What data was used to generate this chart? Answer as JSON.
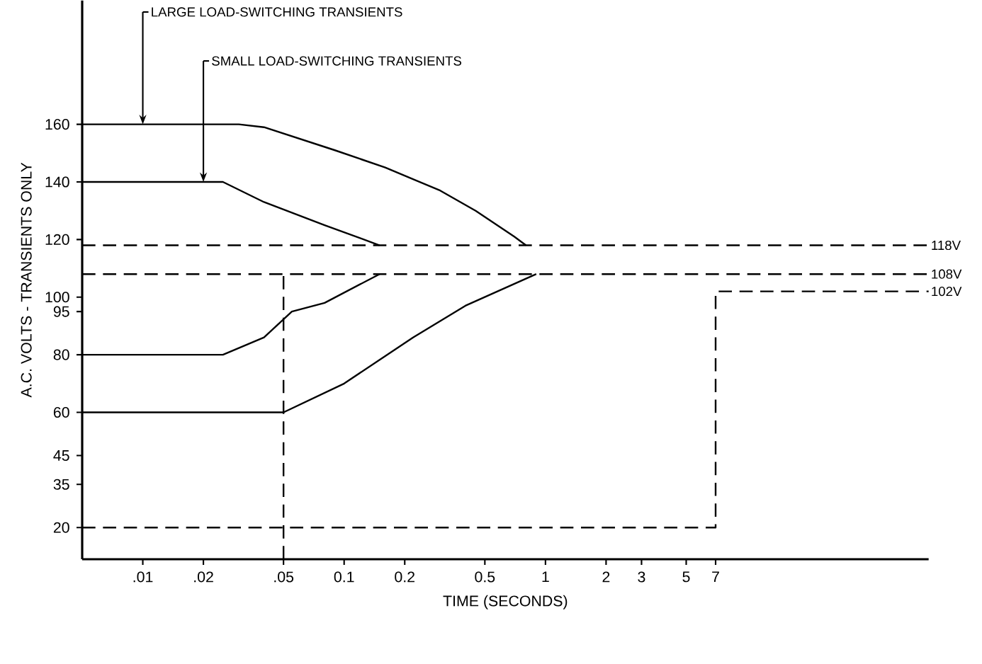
{
  "chart_data": {
    "type": "line",
    "xlabel": "TIME (SECONDS)",
    "ylabel": "A.C. VOLTS - TRANSIENTS ONLY",
    "log": "x",
    "xlim": [
      0.005,
      80
    ],
    "ylim": [
      9,
      203
    ],
    "xticks": [
      {
        "value": 0.01,
        "label": ".01"
      },
      {
        "value": 0.02,
        "label": ".02"
      },
      {
        "value": 0.05,
        "label": ".05"
      },
      0.1,
      0.2,
      0.5,
      1,
      2,
      3,
      5,
      7
    ],
    "yticks": [
      20,
      35,
      45,
      60,
      80,
      95,
      100,
      120,
      140,
      160
    ],
    "marker": "none",
    "grid": false,
    "series": [
      {
        "color": "#000000",
        "line_style": "solid",
        "x": [
          0.005,
          0.03,
          0.04,
          0.09,
          0.16,
          0.3,
          0.45,
          0.7,
          0.8
        ],
        "values": [
          160,
          160,
          159,
          151,
          145,
          137,
          130,
          121,
          118
        ]
      },
      {
        "color": "#000000",
        "line_style": "solid",
        "x": [
          0.005,
          0.025,
          0.04,
          0.08,
          0.15
        ],
        "values": [
          140,
          140,
          133,
          125,
          118
        ]
      },
      {
        "color": "#000000",
        "line_style": "solid",
        "x": [
          0.005,
          0.025,
          0.04,
          0.055,
          0.08,
          0.15
        ],
        "values": [
          80,
          80,
          86,
          95,
          98,
          108
        ]
      },
      {
        "color": "#000000",
        "line_style": "solid",
        "x": [
          0.005,
          0.05,
          0.1,
          0.22,
          0.4,
          0.9
        ],
        "values": [
          60,
          60,
          70,
          86,
          97,
          108
        ]
      },
      {
        "name": "102V",
        "color": "#000000",
        "line_style": "dashed",
        "x": [
          0.005,
          7,
          7,
          80
        ],
        "values": [
          20,
          20,
          102,
          102
        ]
      },
      {
        "color": "#000000",
        "line_style": "dashed",
        "x": [
          0.05,
          0.05
        ],
        "values": [
          9,
          108
        ]
      }
    ],
    "ref_lines": [
      {
        "axis": "y",
        "value": 118,
        "label": "118V",
        "color": "#000000",
        "line_style": "dashed"
      },
      {
        "axis": "y",
        "value": 108,
        "label": "108V",
        "color": "#000000",
        "line_style": "dashed"
      }
    ],
    "annotations": [
      {
        "text": "LARGE LOAD-SWITCHING TRANSIENTS",
        "x": 0.01,
        "y": 160
      },
      {
        "text": "SMALL LOAD-SWITCHING TRANSIENTS",
        "x": 0.02,
        "y": 140
      }
    ]
  }
}
